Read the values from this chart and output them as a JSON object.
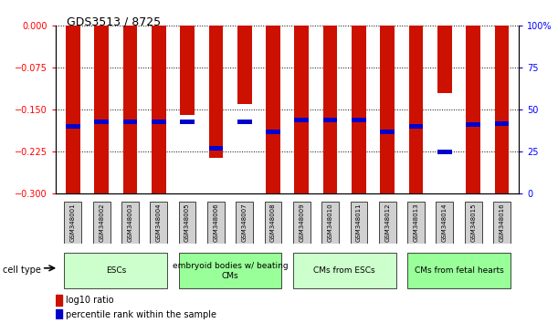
{
  "title": "GDS3513 / 8725",
  "samples": [
    "GSM348001",
    "GSM348002",
    "GSM348003",
    "GSM348004",
    "GSM348005",
    "GSM348006",
    "GSM348007",
    "GSM348008",
    "GSM348009",
    "GSM348010",
    "GSM348011",
    "GSM348012",
    "GSM348013",
    "GSM348014",
    "GSM348015",
    "GSM348016"
  ],
  "log10_ratio": [
    -0.3,
    -0.3,
    -0.3,
    -0.3,
    -0.16,
    -0.235,
    -0.14,
    -0.3,
    -0.3,
    -0.3,
    -0.3,
    -0.3,
    -0.3,
    -0.12,
    -0.3,
    -0.3
  ],
  "percentile_rank": [
    40,
    43,
    43,
    43,
    43,
    27,
    43,
    37,
    44,
    44,
    44,
    37,
    40,
    25,
    41,
    42
  ],
  "ylim": [
    -0.3,
    0
  ],
  "yticks": [
    0,
    -0.075,
    -0.15,
    -0.225,
    -0.3
  ],
  "right_yticks": [
    0,
    25,
    50,
    75,
    100
  ],
  "cell_type_groups": [
    {
      "label": "ESCs",
      "start": 0,
      "end": 4,
      "color": "#ccffcc"
    },
    {
      "label": "embryoid bodies w/ beating\nCMs",
      "start": 4,
      "end": 8,
      "color": "#99ff99"
    },
    {
      "label": "CMs from ESCs",
      "start": 8,
      "end": 12,
      "color": "#ccffcc"
    },
    {
      "label": "CMs from fetal hearts",
      "start": 12,
      "end": 16,
      "color": "#99ff99"
    }
  ],
  "bar_color": "#cc1100",
  "blue_color": "#0000cc",
  "bar_width": 0.5,
  "figsize": [
    6.11,
    3.54
  ],
  "dpi": 100
}
